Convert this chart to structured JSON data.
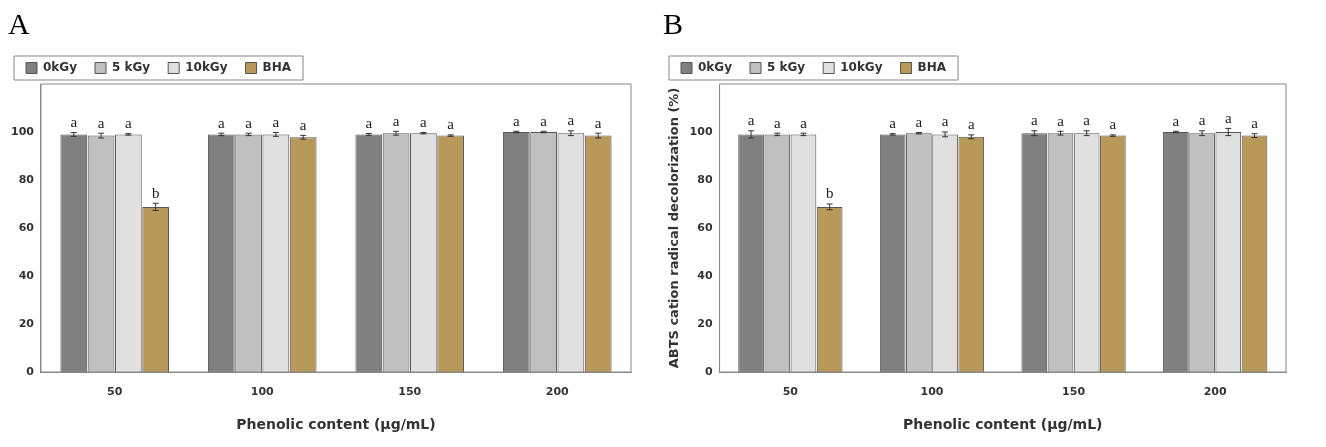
{
  "chart_data": [
    {
      "type": "bar",
      "title": "A",
      "xlabel": "Phenolic content (µg/mL)",
      "categories": [
        "50",
        "100",
        "150",
        "200"
      ],
      "ylim": [
        0,
        120
      ],
      "yticks": [
        0,
        20,
        40,
        60,
        80,
        100
      ],
      "legend": "top left",
      "series": [
        {
          "name": "0kGy",
          "color": "#808080",
          "values": [
            99,
            99,
            99,
            100
          ],
          "errors": [
            0.8,
            0.5,
            0.4,
            0.3
          ],
          "value_labels": [
            "a",
            "a",
            "a",
            "a"
          ]
        },
        {
          "name": "5 kGy",
          "color": "#c0c0c0",
          "values": [
            98.5,
            99,
            99.5,
            100
          ],
          "errors": [
            1,
            0.5,
            0.8,
            0.3
          ],
          "value_labels": [
            "a",
            "a",
            "a",
            "a"
          ]
        },
        {
          "name": "10kGy",
          "color": "#e0e0e0",
          "values": [
            99,
            99,
            99.5,
            99.5
          ],
          "errors": [
            0.3,
            0.8,
            0.3,
            1
          ],
          "value_labels": [
            "a",
            "a",
            "a",
            "a"
          ]
        },
        {
          "name": "BHA",
          "color": "#b8995a",
          "values": [
            68.8,
            97.8,
            98.5,
            98.5
          ],
          "errors": [
            1.5,
            0.8,
            0.3,
            1
          ],
          "value_labels": [
            "b",
            "a",
            "a",
            "a"
          ]
        }
      ]
    },
    {
      "type": "bar",
      "title": "B",
      "xlabel": "Phenolic content (µg/mL)",
      "ylabel": "ABTS cation radical decolorization (%)",
      "categories": [
        "50",
        "100",
        "150",
        "200"
      ],
      "ylim": [
        0,
        120
      ],
      "yticks": [
        0,
        20,
        40,
        60,
        80,
        100
      ],
      "legend": "top left",
      "series": [
        {
          "name": "0kGy",
          "color": "#808080",
          "values": [
            99,
            99,
            99.5,
            100
          ],
          "errors": [
            1.5,
            0.3,
            1,
            0.3
          ],
          "value_labels": [
            "a",
            "a",
            "a",
            "a"
          ]
        },
        {
          "name": "5 kGy",
          "color": "#c0c0c0",
          "values": [
            99,
            99.5,
            99.5,
            99.5
          ],
          "errors": [
            0.5,
            0.3,
            0.8,
            1
          ],
          "value_labels": [
            "a",
            "a",
            "a",
            "a"
          ]
        },
        {
          "name": "10kGy",
          "color": "#e0e0e0",
          "values": [
            99,
            99,
            99.5,
            100
          ],
          "errors": [
            0.5,
            1,
            1,
            1.5
          ],
          "value_labels": [
            "a",
            "a",
            "a",
            "a"
          ]
        },
        {
          "name": "BHA",
          "color": "#b8995a",
          "values": [
            68.8,
            98,
            98.5,
            98.5
          ],
          "errors": [
            1.2,
            0.8,
            0.3,
            0.8
          ],
          "value_labels": [
            "b",
            "a",
            "a",
            "a"
          ]
        }
      ]
    }
  ]
}
